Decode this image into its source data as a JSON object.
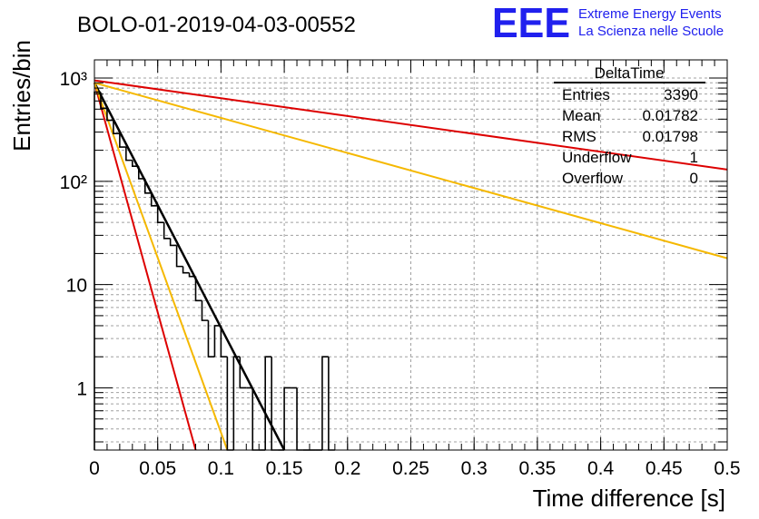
{
  "header": {
    "run_title": "BOLO-01-2019-04-03-00552",
    "logo_text": "EEE",
    "logo_line1": "Extreme Energy Events",
    "logo_line2": "La Scienza nelle Scuole"
  },
  "stats_box": {
    "title": "DeltaTime",
    "rows": [
      {
        "label": "Entries",
        "value": "3390"
      },
      {
        "label": "Mean",
        "value": "0.01782"
      },
      {
        "label": "RMS",
        "value": "0.01798"
      },
      {
        "label": "Underflow",
        "value": "1"
      },
      {
        "label": "Overflow",
        "value": "0"
      }
    ]
  },
  "colors": {
    "histogram": "#000000",
    "fit_line": "#000000",
    "red_curve": "#dd0000",
    "orange_curve": "#f5b800",
    "grid": "#a0a0a0",
    "logo": "#2020ee"
  },
  "chart_data": {
    "type": "histogram",
    "title": "",
    "xlabel": "Time difference [s]",
    "ylabel": "Entries/bin",
    "xlim": [
      0,
      0.5
    ],
    "ylim": [
      0.25,
      1500
    ],
    "y_scale": "log",
    "grid": true,
    "x_ticks": [
      0,
      0.05,
      0.1,
      0.15,
      0.2,
      0.25,
      0.3,
      0.35,
      0.4,
      0.45,
      0.5
    ],
    "x_tick_labels": [
      "0",
      "0.05",
      "0.1",
      "0.15",
      "0.2",
      "0.25",
      "0.3",
      "0.35",
      "0.4",
      "0.45",
      "0.5"
    ],
    "y_ticks": [
      1,
      10,
      100,
      1000
    ],
    "y_tick_labels": [
      "1",
      "10",
      "10²",
      "10³"
    ],
    "bin_width": 0.005,
    "bins": [
      {
        "x": 0.0,
        "y": 730
      },
      {
        "x": 0.005,
        "y": 510
      },
      {
        "x": 0.01,
        "y": 390
      },
      {
        "x": 0.015,
        "y": 290
      },
      {
        "x": 0.02,
        "y": 215
      },
      {
        "x": 0.025,
        "y": 160
      },
      {
        "x": 0.03,
        "y": 140
      },
      {
        "x": 0.035,
        "y": 106
      },
      {
        "x": 0.04,
        "y": 77
      },
      {
        "x": 0.045,
        "y": 58
      },
      {
        "x": 0.05,
        "y": 40
      },
      {
        "x": 0.055,
        "y": 28
      },
      {
        "x": 0.06,
        "y": 24
      },
      {
        "x": 0.065,
        "y": 15
      },
      {
        "x": 0.07,
        "y": 13
      },
      {
        "x": 0.075,
        "y": 12
      },
      {
        "x": 0.08,
        "y": 7
      },
      {
        "x": 0.085,
        "y": 4.5
      },
      {
        "x": 0.09,
        "y": 2
      },
      {
        "x": 0.095,
        "y": 4
      },
      {
        "x": 0.1,
        "y": 2
      },
      {
        "x": 0.105,
        "y": 0
      },
      {
        "x": 0.11,
        "y": 2
      },
      {
        "x": 0.115,
        "y": 1
      },
      {
        "x": 0.12,
        "y": 1
      },
      {
        "x": 0.125,
        "y": 0
      },
      {
        "x": 0.13,
        "y": 0
      },
      {
        "x": 0.135,
        "y": 2
      },
      {
        "x": 0.14,
        "y": 0
      },
      {
        "x": 0.145,
        "y": 0
      },
      {
        "x": 0.15,
        "y": 1
      },
      {
        "x": 0.155,
        "y": 1
      },
      {
        "x": 0.16,
        "y": 0
      },
      {
        "x": 0.165,
        "y": 0
      },
      {
        "x": 0.17,
        "y": 0
      },
      {
        "x": 0.175,
        "y": 0
      },
      {
        "x": 0.18,
        "y": 2
      },
      {
        "x": 0.185,
        "y": 0
      }
    ],
    "curves": [
      {
        "color": "black",
        "x": [
          0,
          0.15
        ],
        "y": [
          900,
          0.25
        ]
      },
      {
        "color": "red",
        "x": [
          0,
          0.08
        ],
        "y": [
          900,
          0.25
        ]
      },
      {
        "color": "orange",
        "x": [
          0,
          0.105
        ],
        "y": [
          900,
          0.25
        ]
      },
      {
        "color": "red",
        "x": [
          0,
          0.5
        ],
        "y": [
          950,
          130
        ]
      },
      {
        "color": "orange",
        "x": [
          0,
          0.5
        ],
        "y": [
          900,
          18
        ]
      }
    ]
  }
}
